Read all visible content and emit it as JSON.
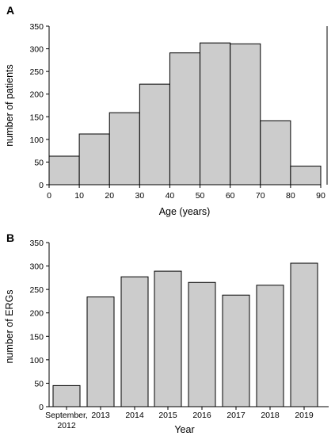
{
  "chart_data": [
    {
      "panel_label": "A",
      "type": "bar",
      "subtype": "histogram",
      "bins": [
        [
          0,
          10
        ],
        [
          10,
          20
        ],
        [
          20,
          30
        ],
        [
          30,
          40
        ],
        [
          40,
          50
        ],
        [
          50,
          60
        ],
        [
          60,
          70
        ],
        [
          70,
          80
        ],
        [
          80,
          90
        ]
      ],
      "values": [
        63,
        112,
        159,
        222,
        291,
        313,
        311,
        141,
        41
      ],
      "x_ticks": [
        "0",
        "10",
        "20",
        "30",
        "40",
        "50",
        "60",
        "70",
        "80",
        "90"
      ],
      "y_ticks": [
        "0",
        "50",
        "100",
        "150",
        "200",
        "250",
        "300",
        "350"
      ],
      "xlabel": "Age (years)",
      "ylabel": "number of patients",
      "xlim": [
        0,
        90
      ],
      "ylim": [
        0,
        350
      ],
      "grid": false,
      "colors": {
        "bar_fill": "#cccccc",
        "bar_edge": "#000000"
      }
    },
    {
      "panel_label": "B",
      "type": "bar",
      "categories": [
        [
          "September,",
          "2012"
        ],
        [
          "2013"
        ],
        [
          "2014"
        ],
        [
          "2015"
        ],
        [
          "2016"
        ],
        [
          "2017"
        ],
        [
          "2018"
        ],
        [
          "2019"
        ]
      ],
      "values": [
        45,
        234,
        277,
        289,
        265,
        238,
        259,
        306
      ],
      "y_ticks": [
        "0",
        "50",
        "100",
        "150",
        "200",
        "250",
        "300",
        "350"
      ],
      "xlabel": "Year",
      "ylabel": "number of ERGs",
      "ylim": [
        0,
        350
      ],
      "grid": false,
      "colors": {
        "bar_fill": "#cccccc",
        "bar_edge": "#000000"
      }
    }
  ]
}
